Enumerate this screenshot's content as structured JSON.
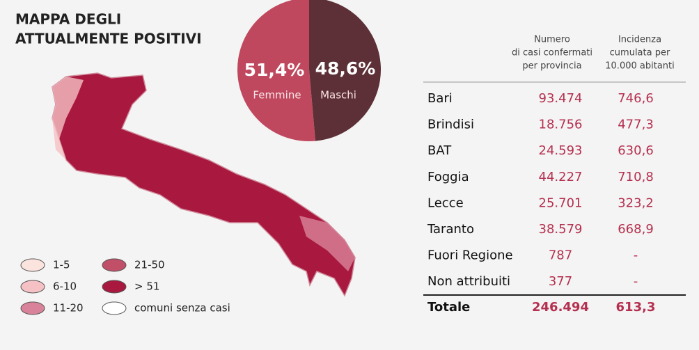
{
  "title": [
    "MAPPA DEGLI",
    "ATTUALMENTE POSITIVI"
  ],
  "chart_data": {
    "type": "pie",
    "categories": [
      "Femmine",
      "Maschi"
    ],
    "values": [
      51.4,
      48.6
    ],
    "value_labels": [
      "51,4%",
      "48,6%"
    ],
    "colors": [
      "#c0485e",
      "#5c3036"
    ]
  },
  "legend": {
    "items": [
      {
        "label": "1-5",
        "color": "#fbe3de"
      },
      {
        "label": "6-10",
        "color": "#f5c1c4"
      },
      {
        "label": "11-20",
        "color": "#d9839a"
      },
      {
        "label": "21-50",
        "color": "#c24f68"
      },
      {
        "label": "> 51",
        "color": "#a8183f"
      },
      {
        "label": "comuni senza casi",
        "color": "#ffffff"
      }
    ]
  },
  "table": {
    "headers": [
      [
        "Numero",
        "di casi confermati",
        "per provincia"
      ],
      [
        "Incidenza",
        "cumulata per",
        "10.000 abitanti"
      ]
    ],
    "rows": [
      [
        "Bari",
        "93.474",
        "746,6"
      ],
      [
        "Brindisi",
        "18.756",
        "477,3"
      ],
      [
        "BAT",
        "24.593",
        "630,6"
      ],
      [
        "Foggia",
        "44.227",
        "710,8"
      ],
      [
        "Lecce",
        "25.701",
        "323,2"
      ],
      [
        "Taranto",
        "38.579",
        "668,9"
      ],
      [
        "Fuori Regione",
        "787",
        "-"
      ],
      [
        "Non attribuiti",
        "377",
        "-"
      ]
    ],
    "total": [
      "Totale",
      "246.494",
      "613,3"
    ]
  }
}
